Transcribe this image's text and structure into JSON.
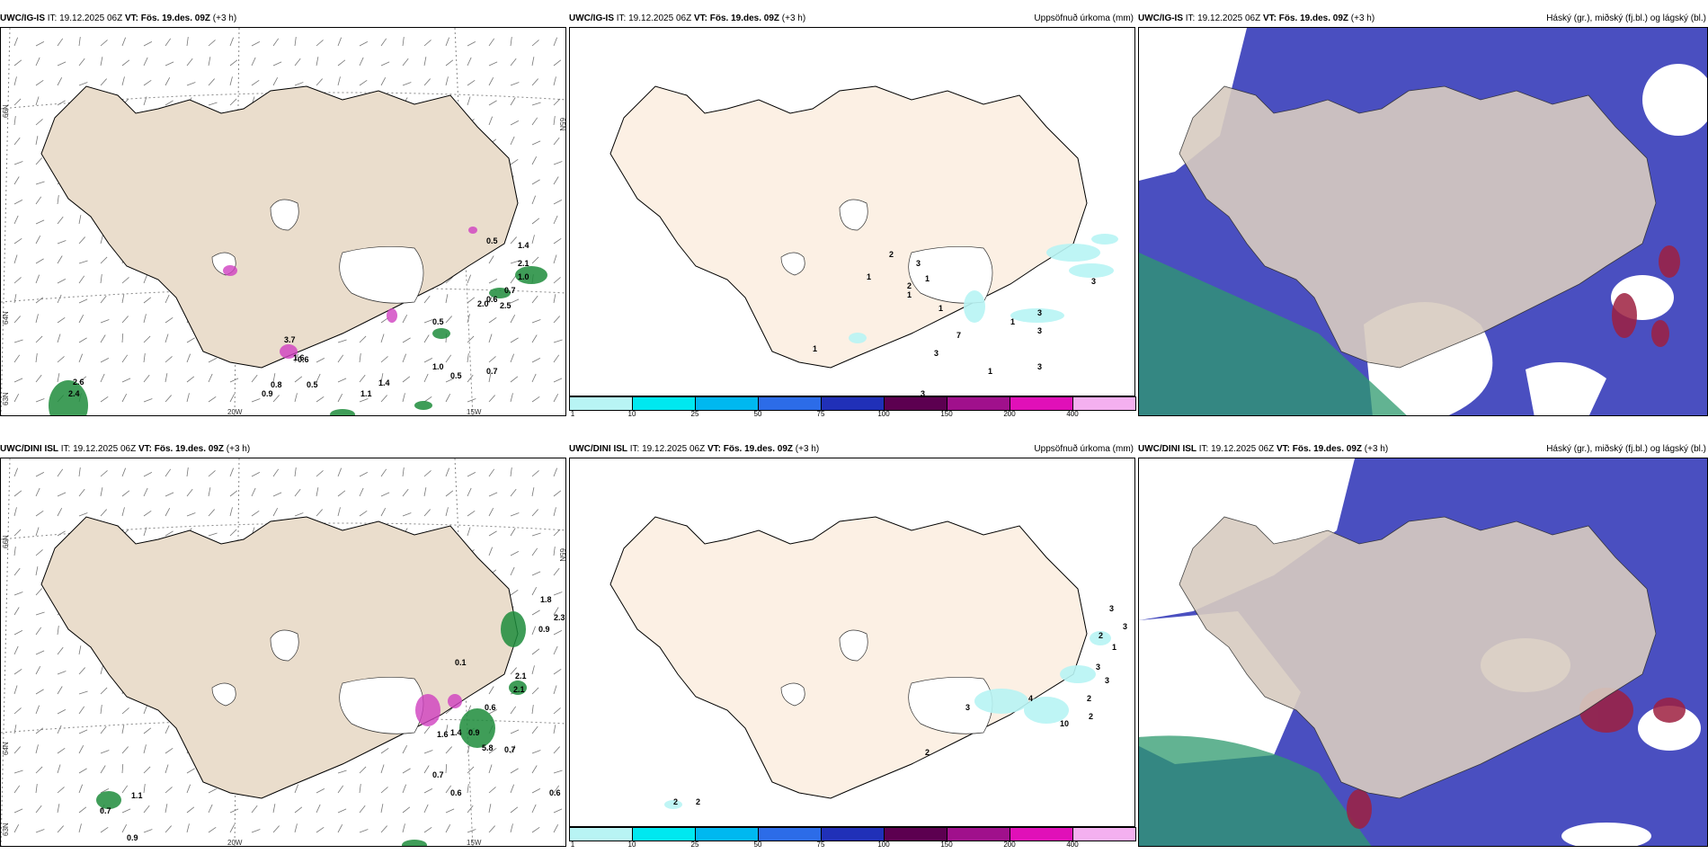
{
  "colors": {
    "land": "#f2e6d6",
    "land_light": "#fcf0e4",
    "high_cloud": "#3f48c8",
    "mid_cloud": "#2e9a6e",
    "low_cloud": "#9e2040",
    "precip_green": "#1e8c3c",
    "snow_magenta": "#d040c0"
  },
  "panels": {
    "p1": {
      "model": "UWC/IG-IS",
      "it": "IT: 19.12.2025 06Z",
      "vt_label": "VT:",
      "vt": "Fös. 19.des. 09Z",
      "lead": "(+3 h)",
      "right": ""
    },
    "p2": {
      "model": "UWC/IG-IS",
      "it": "IT: 19.12.2025 06Z",
      "vt_label": "VT:",
      "vt": "Fös. 19.des. 09Z",
      "lead": "(+3 h)",
      "right": "Uppsöfnuð úrkoma (mm)"
    },
    "p3": {
      "model": "UWC/IG-IS",
      "it": "IT: 19.12.2025 06Z",
      "vt_label": "VT:",
      "vt": "Fös. 19.des. 09Z",
      "lead": "(+3 h)",
      "right": "Háský (gr.), miðský (fj.bl.) og lágský (bl.)"
    },
    "p4": {
      "model": "UWC/DINI ISL",
      "it": "IT: 19.12.2025 06Z",
      "vt_label": "VT:",
      "vt": "Fös. 19.des. 09Z",
      "lead": "(+3 h)",
      "right": ""
    },
    "p5": {
      "model": "UWC/DINI ISL",
      "it": "IT: 19.12.2025 06Z",
      "vt_label": "VT:",
      "vt": "Fös. 19.des. 09Z",
      "lead": "(+3 h)",
      "right": "Uppsöfnuð úrkoma (mm)"
    },
    "p6": {
      "model": "UWC/DINI ISL",
      "it": "IT: 19.12.2025 06Z",
      "vt_label": "VT:",
      "vt": "Fös. 19.des. 09Z",
      "lead": "(+3 h)",
      "right": "Háský (gr.), miðský (fj.bl.) og lágský (bl.)"
    }
  },
  "axes": {
    "lat_66": "66N",
    "lat_64": "64N",
    "lat_65": "65N",
    "lat_63": "63N",
    "lon_20": "20W",
    "lon_15": "15W"
  },
  "colorbar": {
    "labels": [
      "1",
      "10",
      "25",
      "50",
      "75",
      "100",
      "150",
      "200",
      "400"
    ],
    "colors": [
      "#b8f4f4",
      "#00e8f0",
      "#00b8f0",
      "#2c6ce8",
      "#2030b8",
      "#5c0050",
      "#a0108c",
      "#e010b8",
      "#f4b0f0"
    ]
  },
  "p1_values": [
    "0.5",
    "1.4",
    "2.1",
    "1.0",
    "0.7",
    "0.6",
    "2.0",
    "2.5",
    "0.5",
    "0.7",
    "1.0",
    "0.5",
    "1.4",
    "1.1",
    "0.5",
    "0.8",
    "0.9",
    "3.7",
    "1.6",
    "2.6",
    "2.4",
    "0.6"
  ],
  "p2_values": [
    "2",
    "3",
    "1",
    "2",
    "1",
    "1",
    "1",
    "7",
    "1",
    "3",
    "3",
    "4",
    "3",
    "3",
    "1",
    "3",
    "3",
    "1",
    "2",
    "1"
  ],
  "p4_values": [
    "0.1",
    "1.8",
    "2.3",
    "0.9",
    "2.1",
    "0.6",
    "1.4",
    "0.9",
    "1.6",
    "5.8",
    "0.7",
    "0.7",
    "0.6",
    "0.6",
    "1.1",
    "0.7",
    "0.9",
    "2.1"
  ],
  "p5_values": [
    "3",
    "3",
    "2",
    "1",
    "3",
    "3",
    "2",
    "4",
    "3",
    "10",
    "2",
    "2",
    "2",
    "2"
  ]
}
